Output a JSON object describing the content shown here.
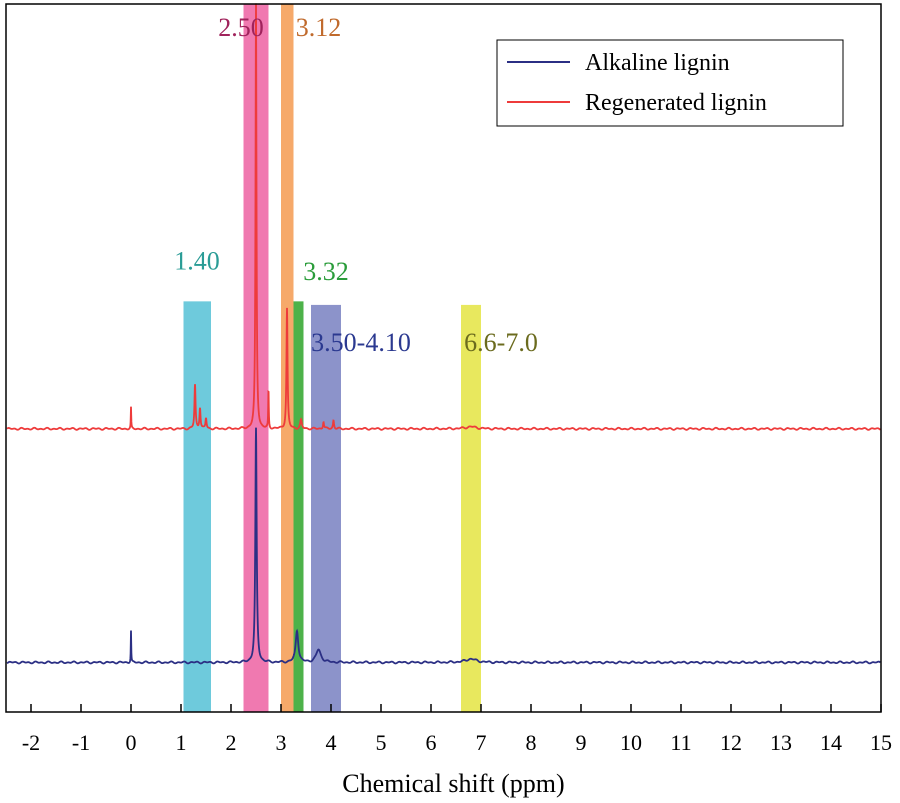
{
  "chart_data": {
    "type": "line",
    "title": "",
    "xlabel": "Chemical shift (ppm)",
    "ylabel": "",
    "xlim": [
      -2.5,
      15
    ],
    "xticks": [
      -2,
      -1,
      0,
      1,
      2,
      3,
      4,
      5,
      6,
      7,
      8,
      9,
      10,
      11,
      12,
      13,
      14,
      15
    ],
    "xtick_labels": [
      "-2",
      "-1",
      "0",
      "1",
      "2",
      "3",
      "4",
      "5",
      "6",
      "7",
      "8",
      "9",
      "10",
      "11",
      "12",
      "13",
      "14",
      "15"
    ],
    "ylim": [
      0,
      1
    ],
    "grid": false,
    "legend_position": "top-right",
    "series": [
      {
        "name": "Alkaline lignin",
        "color": "#2b2f84",
        "baseline": 0.07,
        "peaks": [
          {
            "x": 0.0,
            "height": 0.045,
            "width": 0.008
          },
          {
            "x": 2.5,
            "height": 0.33,
            "width": 0.025
          },
          {
            "x": 3.32,
            "height": 0.045,
            "width": 0.05
          },
          {
            "x": 3.75,
            "height": 0.018,
            "width": 0.09
          },
          {
            "x": 6.8,
            "height": 0.005,
            "width": 0.2
          }
        ]
      },
      {
        "name": "Regenerated lignin",
        "color": "#ee3b3b",
        "baseline": 0.4,
        "peaks": [
          {
            "x": 0.0,
            "height": 0.03,
            "width": 0.008
          },
          {
            "x": 1.28,
            "height": 0.062,
            "width": 0.02
          },
          {
            "x": 1.38,
            "height": 0.03,
            "width": 0.02
          },
          {
            "x": 1.5,
            "height": 0.015,
            "width": 0.02
          },
          {
            "x": 2.5,
            "height": 0.6,
            "width": 0.018
          },
          {
            "x": 2.75,
            "height": 0.055,
            "width": 0.01
          },
          {
            "x": 3.12,
            "height": 0.17,
            "width": 0.02
          },
          {
            "x": 3.4,
            "height": 0.012,
            "width": 0.03
          },
          {
            "x": 3.85,
            "height": 0.01,
            "width": 0.02
          },
          {
            "x": 4.05,
            "height": 0.012,
            "width": 0.02
          },
          {
            "x": 6.8,
            "height": 0.003,
            "width": 0.2
          }
        ]
      }
    ],
    "regions": [
      {
        "label": "1.40",
        "x_start": 1.05,
        "x_end": 1.6,
        "y_top": 0.58,
        "color": "#5ec4d8"
      },
      {
        "label": "2.50",
        "x_start": 2.25,
        "x_end": 2.75,
        "y_top": 1.0,
        "color": "#ee6aa7"
      },
      {
        "label": "3.12",
        "x_start": 3.0,
        "x_end": 3.25,
        "y_top": 1.0,
        "color": "#f5a05a"
      },
      {
        "label": "3.32",
        "x_start": 3.25,
        "x_end": 3.45,
        "y_top": 0.58,
        "color": "#3aaa35"
      },
      {
        "label": "3.50-4.10",
        "x_start": 3.6,
        "x_end": 4.2,
        "y_top": 0.575,
        "color": "#7f87c4"
      },
      {
        "label": "6.6-7.0",
        "x_start": 6.6,
        "x_end": 7.0,
        "y_top": 0.575,
        "color": "#e6e64c"
      }
    ],
    "region_label_colors": {
      "1.40": "#2a9c96",
      "2.50": "#a0235c",
      "3.12": "#c06a2c",
      "3.32": "#2a9c3a",
      "3.50-4.10": "#2b3990",
      "6.6-7.0": "#6b6b1e"
    }
  }
}
